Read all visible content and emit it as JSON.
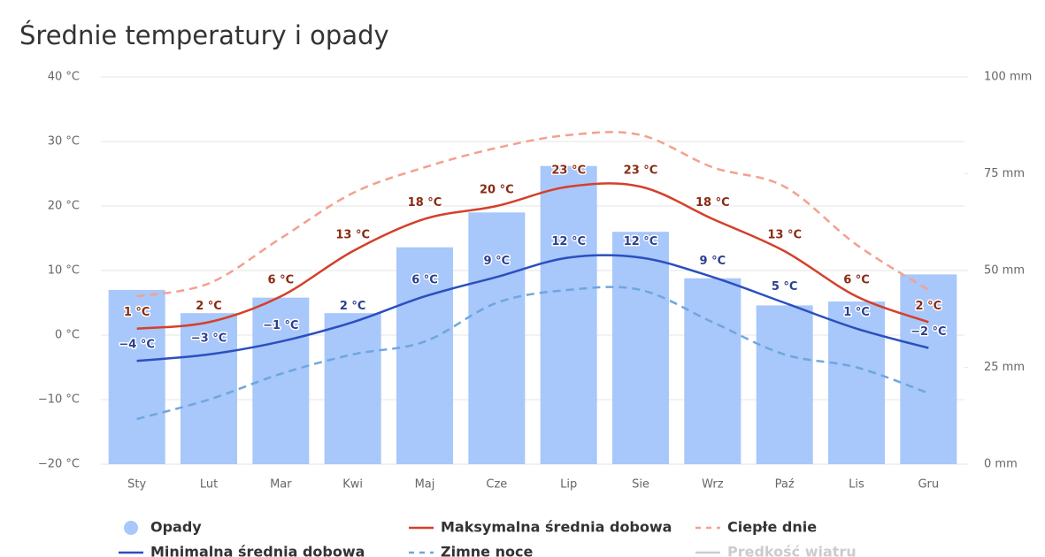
{
  "chart_data": {
    "type": "combo",
    "title": "Średnie temperatury i opady",
    "categories": [
      "Sty",
      "Lut",
      "Mar",
      "Kwi",
      "Maj",
      "Cze",
      "Lip",
      "Sie",
      "Wrz",
      "Paź",
      "Lis",
      "Gru"
    ],
    "ylim": [
      -20,
      40
    ],
    "yticks": [
      {
        "value": -20,
        "label": "−20 °C"
      },
      {
        "value": -10,
        "label": "−10 °C"
      },
      {
        "value": 0,
        "label": "0 °C"
      },
      {
        "value": 10,
        "label": "10 °C"
      },
      {
        "value": 20,
        "label": "20 °C"
      },
      {
        "value": 30,
        "label": "30 °C"
      },
      {
        "value": 40,
        "label": "40 °C"
      }
    ],
    "y2lim": [
      0,
      100
    ],
    "y2ticks": [
      {
        "value": 0,
        "label": "0 mm"
      },
      {
        "value": 25,
        "label": "25 mm"
      },
      {
        "value": 50,
        "label": "50 mm"
      },
      {
        "value": 75,
        "label": "75 mm"
      },
      {
        "value": 100,
        "label": "100 mm"
      }
    ],
    "grid": true,
    "series": [
      {
        "name": "Opady",
        "type": "bar",
        "axis": "y2",
        "color": "#a8c7fa",
        "values": [
          45,
          39,
          43,
          39,
          56,
          65,
          77,
          60,
          48,
          41,
          42,
          49
        ]
      },
      {
        "name": "Maksymalna średnia dobowa",
        "type": "line",
        "color": "#d4402a",
        "label_color": "#8a2a12",
        "values": [
          1,
          2,
          6,
          13,
          18,
          20,
          23,
          23,
          18,
          13,
          6,
          2
        ],
        "value_labels": [
          "1 °C",
          "2 °C",
          "6 °C",
          "13 °C",
          "18 °C",
          "20 °C",
          "23 °C",
          "23 °C",
          "18 °C",
          "13 °C",
          "6 °C",
          "2 °C"
        ]
      },
      {
        "name": "Ciepłe dnie",
        "type": "line",
        "dash": true,
        "color": "#f4a08e",
        "values": [
          6,
          8,
          15,
          22,
          26,
          29,
          31,
          31,
          26,
          23,
          14,
          7
        ]
      },
      {
        "name": "Minimalna średnia dobowa",
        "type": "line",
        "color": "#2b4fbf",
        "label_color": "#2b3f8f",
        "values": [
          -4,
          -3,
          -1,
          2,
          6,
          9,
          12,
          12,
          9,
          5,
          1,
          -2
        ],
        "value_labels": [
          "−4 °C",
          "−3 °C",
          "−1 °C",
          "2 °C",
          "6 °C",
          "9 °C",
          "12 °C",
          "12 °C",
          "9 °C",
          "5 °C",
          "1 °C",
          "−2 °C"
        ]
      },
      {
        "name": "Zimne noce",
        "type": "line",
        "dash": true,
        "color": "#6fa6df",
        "values": [
          -13,
          -10,
          -6,
          -3,
          -1,
          5,
          7,
          7,
          2,
          -3,
          -5,
          -9
        ]
      }
    ],
    "inactive_series": [
      {
        "name": "Prędkość wiatru",
        "color": "#cccccc"
      }
    ]
  }
}
